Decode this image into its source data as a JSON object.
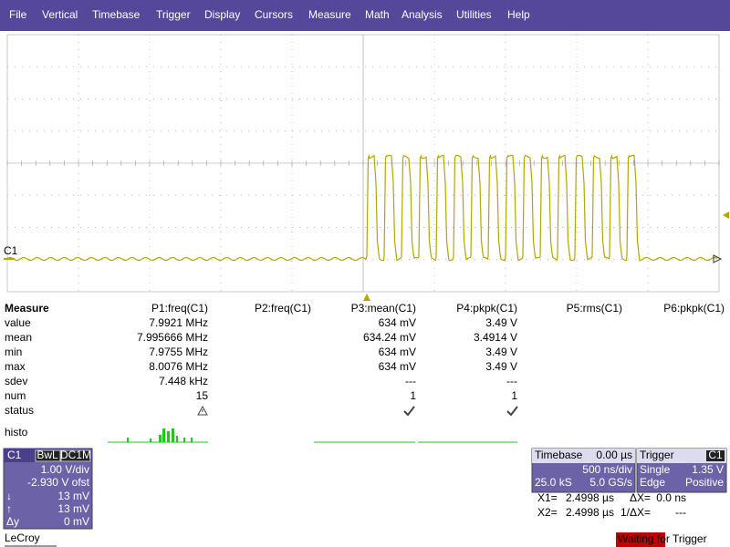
{
  "menu": [
    "File",
    "Vertical",
    "Timebase",
    "Trigger",
    "Display",
    "Cursors",
    "Measure",
    "Math",
    "Analysis",
    "Utilities",
    "Help"
  ],
  "grid": {
    "channel_marker": "C1"
  },
  "measure": {
    "title": "Measure",
    "params": [
      "P1:freq(C1)",
      "P2:freq(C1)",
      "P3:mean(C1)",
      "P4:pkpk(C1)",
      "P5:rms(C1)",
      "P6:pkpk(C1)"
    ],
    "rows": [
      {
        "label": "value",
        "cells": {
          "P1": "7.9921 MHz",
          "P3": "634 mV",
          "P4": "3.49 V"
        }
      },
      {
        "label": "mean",
        "cells": {
          "P1": "7.995666 MHz",
          "P3": "634.24 mV",
          "P4": "3.4914 V"
        }
      },
      {
        "label": "min",
        "cells": {
          "P1": "7.9755 MHz",
          "P3": "634 mV",
          "P4": "3.49 V"
        }
      },
      {
        "label": "max",
        "cells": {
          "P1": "8.0076 MHz",
          "P3": "634 mV",
          "P4": "3.49 V"
        }
      },
      {
        "label": "sdev",
        "cells": {
          "P1": "7.448 kHz",
          "P3": "---",
          "P4": "---"
        }
      },
      {
        "label": "num",
        "cells": {
          "P1": "15",
          "P3": "1",
          "P4": "1"
        }
      },
      {
        "label": "status"
      }
    ],
    "histo_label": "histo"
  },
  "channel": {
    "name": "C1",
    "bandwidth": "BwL",
    "coupling": "DC1M",
    "scale": "1.00 V/div",
    "offset": "-2.930 V ofst",
    "rows": [
      {
        "label": "↓",
        "value": "13 mV"
      },
      {
        "label": "↑",
        "value": "13 mV"
      },
      {
        "label": "Δy",
        "value": "0 mV"
      }
    ]
  },
  "timebase": {
    "title": "Timebase",
    "delay": "0.00 µs",
    "scale": "500 ns/div",
    "samples": "25.0 kS",
    "rate": "5.0 GS/s"
  },
  "trigger": {
    "title": "Trigger",
    "source": "C1",
    "mode": "Single",
    "level": "1.35 V",
    "type": "Edge",
    "slope": "Positive"
  },
  "cursors": [
    {
      "label": "X1=",
      "value": "2.4998 µs",
      "delta_label": "ΔX=",
      "delta_value": "0.0 ns"
    },
    {
      "label": "X2=",
      "value": "2.4998 µs",
      "delta_label": "1/ΔX=",
      "delta_value": "---"
    }
  ],
  "status": "Waiting for Trigger",
  "logo": "LeCroy"
}
